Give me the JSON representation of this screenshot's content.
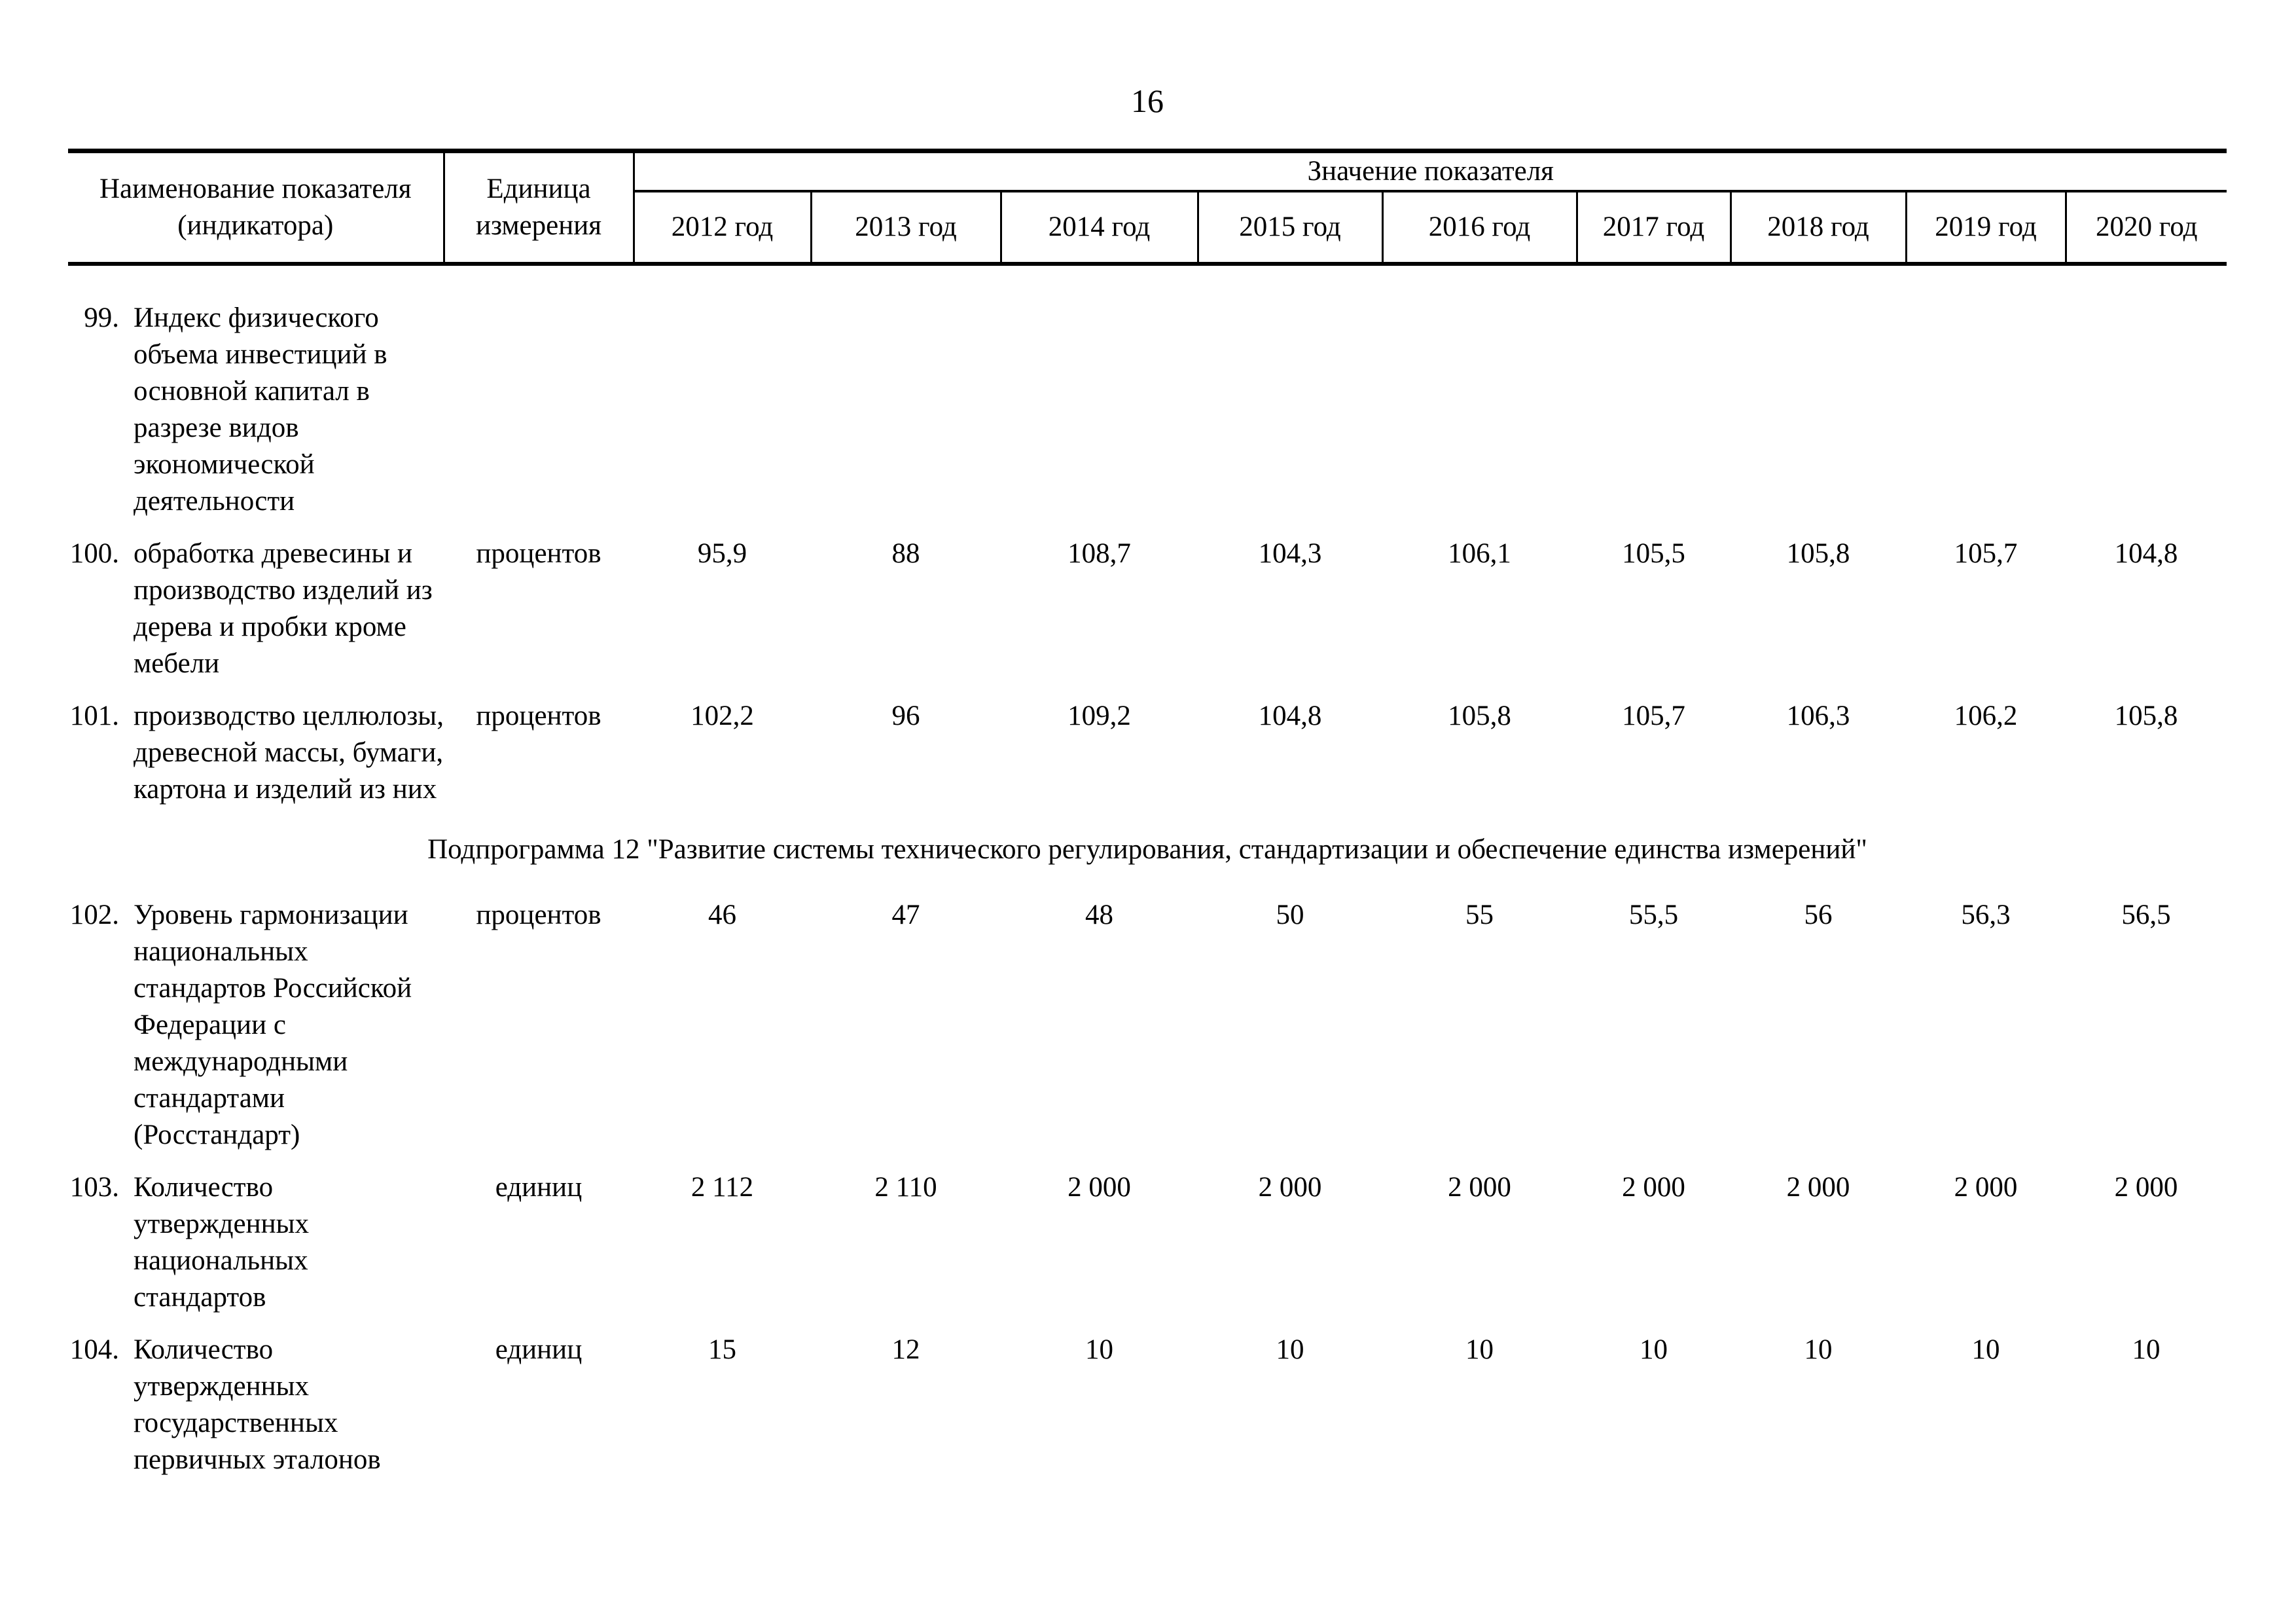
{
  "page": {
    "number": "16"
  },
  "table": {
    "header": {
      "name_label": "Наименование показателя\n(индикатора)",
      "unit_label": "Единица\nизмерения",
      "value_label": "Значение показателя",
      "years": [
        "2012 год",
        "2013 год",
        "2014 год",
        "2015 год",
        "2016 год",
        "2017 год",
        "2018 год",
        "2019 год",
        "2020 год"
      ]
    },
    "rows": [
      {
        "num": "99.",
        "name": "Индекс физического\nобъема инвестиций в\nосновной капитал в\nразрезе видов\nэкономической\nдеятельности",
        "unit": "",
        "values": [
          "",
          "",
          "",
          "",
          "",
          "",
          "",
          "",
          ""
        ]
      },
      {
        "num": "100.",
        "name": "обработка древесины и\nпроизводство изделий из\nдерева и пробки кроме\nмебели",
        "unit": "процентов",
        "values": [
          "95,9",
          "88",
          "108,7",
          "104,3",
          "106,1",
          "105,5",
          "105,8",
          "105,7",
          "104,8"
        ]
      },
      {
        "num": "101.",
        "name": "производство целлюлозы,\nдревесной массы, бумаги,\nкартона и изделий из них",
        "unit": "процентов",
        "values": [
          "102,2",
          "96",
          "109,2",
          "104,8",
          "105,8",
          "105,7",
          "106,3",
          "106,2",
          "105,8"
        ]
      },
      {
        "type": "heading",
        "text": "Подпрограмма 12 \"Развитие системы технического регулирования, стандартизации и обеспечение единства измерений\""
      },
      {
        "num": "102.",
        "name": "Уровень гармонизации\nнациональных\nстандартов Российской\nФедерации с\nмеждународными\nстандартами\n(Росстандарт)",
        "unit": "процентов",
        "values": [
          "46",
          "47",
          "48",
          "50",
          "55",
          "55,5",
          "56",
          "56,3",
          "56,5"
        ]
      },
      {
        "num": "103.",
        "name": "Количество\nутвержденных\nнациональных\nстандартов",
        "unit": "единиц",
        "values": [
          "2 112",
          "2 110",
          "2 000",
          "2 000",
          "2 000",
          "2 000",
          "2 000",
          "2 000",
          "2 000"
        ]
      },
      {
        "num": "104.",
        "name": "Количество\nутвержденных\nгосударственных\nпервичных эталонов",
        "unit": "единиц",
        "values": [
          "15",
          "12",
          "10",
          "10",
          "10",
          "10",
          "10",
          "10",
          "10"
        ]
      }
    ]
  }
}
